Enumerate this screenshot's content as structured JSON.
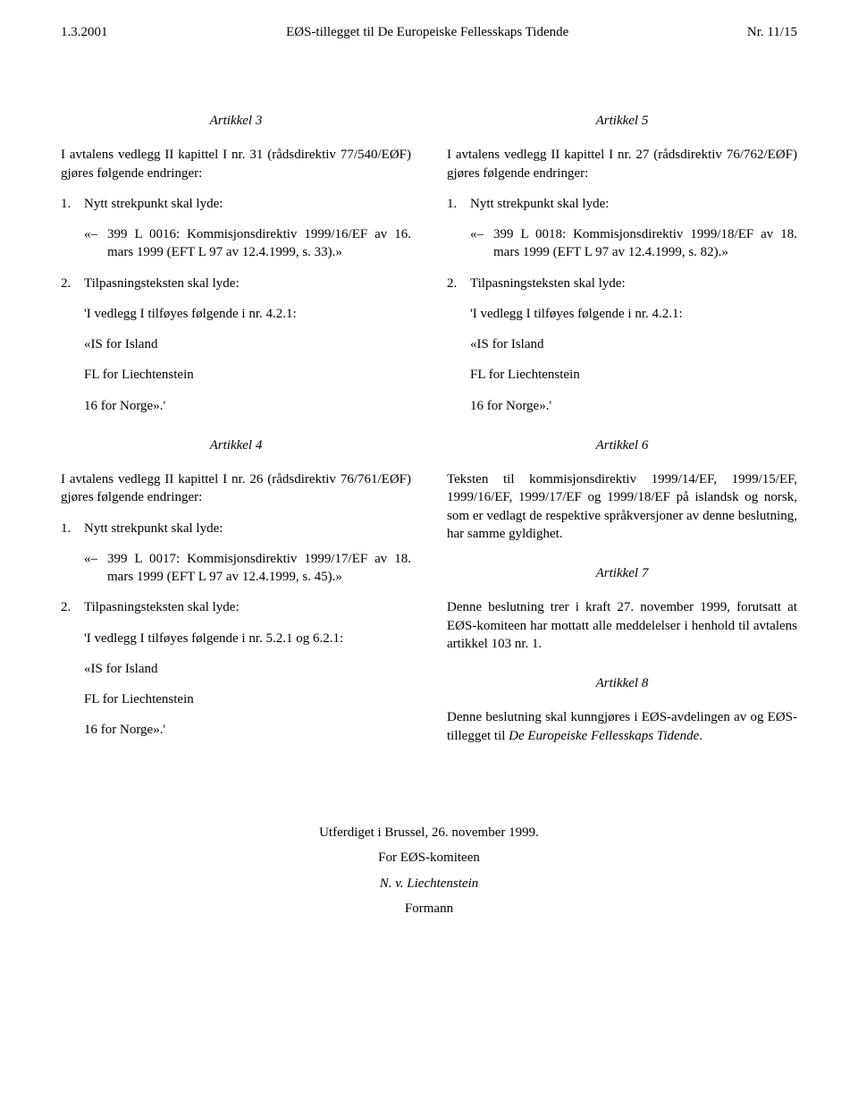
{
  "header": {
    "left_date": "1.3.2001",
    "center_title": "EØS-tillegget til De Europeiske Fellesskaps Tidende",
    "right_page": "Nr. 11/15"
  },
  "left_column": {
    "article3": {
      "title": "Artikkel 3",
      "intro": "I avtalens vedlegg II kapittel I nr. 31 (rådsdirektiv 77/540/EØF) gjøres følgende endringer:",
      "item1_num": "1.",
      "item1_text": "Nytt strekpunkt skal lyde:",
      "item1_bullet_mark": "«–",
      "item1_bullet_text": "399 L 0016: Kommisjonsdirektiv 1999/16/EF av 16. mars 1999 (EFT L 97 av 12.4.1999, s. 33).»",
      "item2_num": "2.",
      "item2_text": "Tilpasningsteksten skal lyde:",
      "item2_line1": "'I vedlegg I tilføyes følgende i nr. 4.2.1:",
      "item2_line2": "«IS for Island",
      "item2_line3": "FL for Liechtenstein",
      "item2_line4": "16 for Norge».'"
    },
    "article4": {
      "title": "Artikkel 4",
      "intro": "I avtalens vedlegg II kapittel I nr. 26 (rådsdirektiv 76/761/EØF) gjøres følgende endringer:",
      "item1_num": "1.",
      "item1_text": "Nytt strekpunkt skal lyde:",
      "item1_bullet_mark": "«–",
      "item1_bullet_text": "399 L 0017: Kommisjonsdirektiv 1999/17/EF av 18. mars 1999 (EFT L 97 av 12.4.1999, s. 45).»",
      "item2_num": "2.",
      "item2_text": "Tilpasningsteksten skal lyde:",
      "item2_line1": "'I vedlegg I tilføyes følgende i nr. 5.2.1 og 6.2.1:",
      "item2_line2": "«IS for Island",
      "item2_line3": "FL for Liechtenstein",
      "item2_line4": "16 for Norge».'"
    }
  },
  "right_column": {
    "article5": {
      "title": "Artikkel 5",
      "intro": "I avtalens vedlegg II kapittel I nr. 27 (rådsdirektiv 76/762/EØF) gjøres følgende endringer:",
      "item1_num": "1.",
      "item1_text": "Nytt strekpunkt skal lyde:",
      "item1_bullet_mark": "«–",
      "item1_bullet_text": "399 L 0018: Kommisjonsdirektiv 1999/18/EF av 18. mars 1999 (EFT L 97 av 12.4.1999, s. 82).»",
      "item2_num": "2.",
      "item2_text": "Tilpasningsteksten skal lyde:",
      "item2_line1": "'I vedlegg I tilføyes følgende i nr. 4.2.1:",
      "item2_line2": "«IS for Island",
      "item2_line3": "FL for Liechtenstein",
      "item2_line4": "16 for Norge».'"
    },
    "article6": {
      "title": "Artikkel 6",
      "para": "Teksten til kommisjonsdirektiv 1999/14/EF, 1999/15/EF, 1999/16/EF, 1999/17/EF og 1999/18/EF på islandsk og norsk, som er vedlagt de respektive språkversjoner av denne beslutning, har samme gyldighet."
    },
    "article7": {
      "title": "Artikkel 7",
      "para": "Denne beslutning trer i kraft 27. november 1999, forutsatt at EØS-komiteen har mottatt alle meddelelser i henhold til avtalens artikkel 103 nr. 1."
    },
    "article8": {
      "title": "Artikkel 8",
      "para_prefix": "Denne beslutning skal kunngjøres i EØS-avdelingen av og EØS-tillegget til ",
      "para_italic": "De Europeiske Fellesskaps Tidende",
      "para_suffix": "."
    }
  },
  "signature": {
    "place_date": "Utferdiget i Brussel, 26. november 1999.",
    "for_line": "For EØS-komiteen",
    "name": "N. v. Liechtenstein",
    "role": "Formann"
  }
}
